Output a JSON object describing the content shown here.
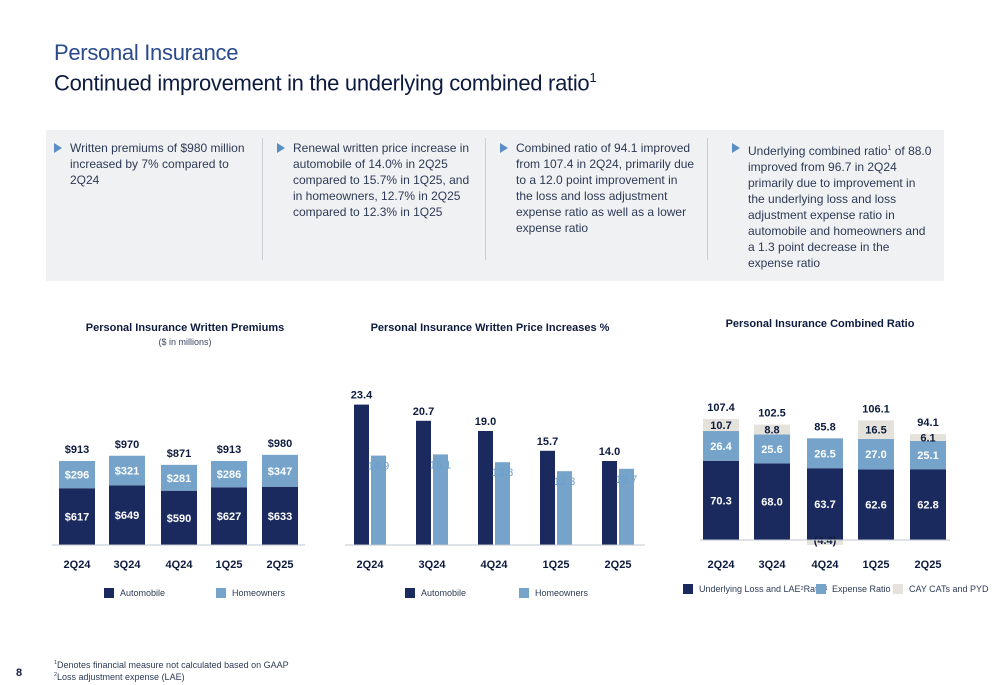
{
  "header": {
    "title": "Personal Insurance",
    "subtitle": "Continued improvement in the underlying combined ratio",
    "subtitle_sup": "1"
  },
  "bullets": [
    {
      "text": "Written premiums of $980 million increased by 7% compared to 2Q24"
    },
    {
      "text": "Renewal written price increase in automobile of 14.0% in 2Q25 compared to 15.7% in 1Q25, and in homeowners, 12.7% in 2Q25 compared to 12.3% in 1Q25"
    },
    {
      "text": "Combined ratio of 94.1 improved from 107.4 in 2Q24, primarily due to a 12.0 point improvement in the loss and loss adjustment expense ratio as well as a lower expense ratio"
    },
    {
      "text_pre": "Underlying combined ratio",
      "sup": "1",
      "text_post": " of 88.0 improved from 96.7 in 2Q24 primarily due to improvement in the underlying loss and loss adjustment expense ratio in automobile and homeowners and a 1.3 point decrease in the expense ratio"
    }
  ],
  "colors": {
    "dark": "#1b2a5e",
    "light": "#75a3c9",
    "cat": "#e5e2dc",
    "lightText": "#6b9fcd"
  },
  "chart_data": [
    {
      "type": "bar",
      "stacked": true,
      "title": "Personal Insurance Written Premiums",
      "subtitle": "($ in millions)",
      "categories": [
        "2Q24",
        "3Q24",
        "4Q24",
        "1Q25",
        "2Q25"
      ],
      "series": [
        {
          "name": "Automobile",
          "values": [
            617,
            649,
            590,
            627,
            633
          ],
          "labels": [
            "$617",
            "$649",
            "$590",
            "$627",
            "$633"
          ]
        },
        {
          "name": "Homeowners",
          "values": [
            296,
            321,
            281,
            286,
            347
          ],
          "labels": [
            "$296",
            "$321",
            "$281",
            "$286",
            "$347"
          ]
        }
      ],
      "totals": [
        "$913",
        "$970",
        "$871",
        "$913",
        "$980"
      ]
    },
    {
      "type": "bar",
      "grouped": true,
      "title": "Personal Insurance Written Price Increases %",
      "categories": [
        "2Q24",
        "3Q24",
        "4Q24",
        "1Q25",
        "2Q25"
      ],
      "series": [
        {
          "name": "Automobile",
          "values": [
            23.4,
            20.7,
            19.0,
            15.7,
            14.0
          ],
          "labels": [
            "23.4",
            "20.7",
            "19.0",
            "15.7",
            "14.0"
          ]
        },
        {
          "name": "Homeowners",
          "values": [
            14.9,
            15.1,
            13.8,
            12.3,
            12.7
          ],
          "labels": [
            "14.9",
            "15.1",
            "13.8",
            "12.3",
            "12.7"
          ]
        }
      ]
    },
    {
      "type": "bar",
      "stacked": true,
      "title": "Personal Insurance Combined Ratio",
      "categories": [
        "2Q24",
        "3Q24",
        "4Q24",
        "1Q25",
        "2Q25"
      ],
      "series": [
        {
          "name_pre": "Underlying Loss and LAE",
          "name_sup1": "2",
          "name_mid": " Ratio",
          "name_sup2": "1",
          "values": [
            70.3,
            68.0,
            63.7,
            62.6,
            62.8
          ],
          "labels": [
            "70.3",
            "68.0",
            "63.7",
            "62.6",
            "62.8"
          ]
        },
        {
          "name": "Expense Ratio",
          "values": [
            26.4,
            25.6,
            26.5,
            27.0,
            25.1
          ],
          "labels": [
            "26.4",
            "25.6",
            "26.5",
            "27.0",
            "25.1"
          ]
        },
        {
          "name": "CAY CATs and PYD",
          "values": [
            10.7,
            8.8,
            -4.4,
            16.5,
            6.1
          ],
          "labels": [
            "10.7",
            "8.8",
            "(4.4)",
            "16.5",
            "6.1"
          ]
        }
      ],
      "totals": [
        "107.4",
        "102.5",
        "85.8",
        "106.1",
        "94.1"
      ]
    }
  ],
  "footnotes": [
    {
      "sup": "1",
      "text": "Denotes financial measure not calculated based on GAAP"
    },
    {
      "sup": "2",
      "text": "Loss adjustment expense (LAE)"
    }
  ],
  "page_number": "8"
}
